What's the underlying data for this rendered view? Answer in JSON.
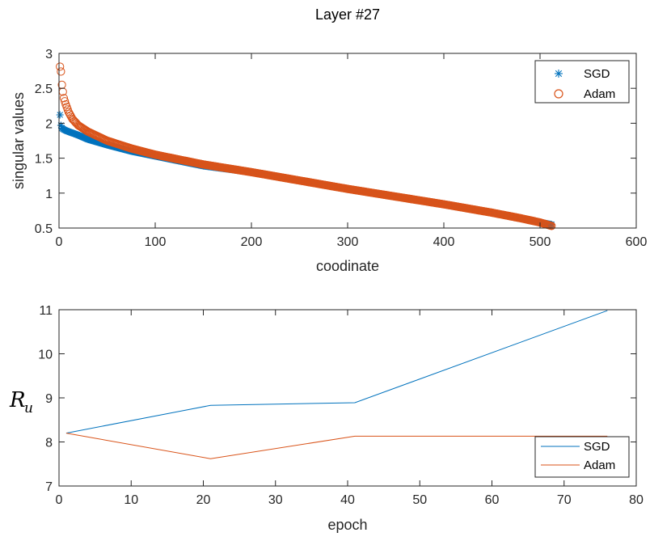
{
  "title": "Layer #27",
  "colors": {
    "sgd": "#0072BD",
    "adam": "#D95319",
    "axis": "#262626"
  },
  "chart_data": [
    {
      "type": "scatter",
      "xlabel": "coodinate",
      "ylabel": "singular values",
      "xlim": [
        0,
        600
      ],
      "ylim": [
        0.5,
        3
      ],
      "xticks": [
        0,
        100,
        200,
        300,
        400,
        500,
        600
      ],
      "yticks": [
        0.5,
        1,
        1.5,
        2,
        2.5,
        3
      ],
      "xtick_labels": [
        "0",
        "100",
        "200",
        "300",
        "400",
        "500",
        "600"
      ],
      "ytick_labels": [
        "0.5",
        "1",
        "1.5",
        "2",
        "2.5",
        "3"
      ],
      "legend_position": "top-right",
      "series": [
        {
          "name": "SGD",
          "marker": "asterisk",
          "n_points": 512,
          "x": [
            1,
            2,
            3,
            5,
            8,
            12,
            20,
            30,
            50,
            75,
            100,
            150,
            200,
            250,
            300,
            350,
            400,
            450,
            480,
            500,
            512
          ],
          "y": [
            2.12,
            1.97,
            1.93,
            1.91,
            1.89,
            1.87,
            1.83,
            1.77,
            1.69,
            1.6,
            1.53,
            1.39,
            1.3,
            1.18,
            1.06,
            0.95,
            0.84,
            0.72,
            0.64,
            0.58,
            0.55
          ]
        },
        {
          "name": "Adam",
          "marker": "circle",
          "n_points": 512,
          "x": [
            1,
            2,
            3,
            4,
            5,
            7,
            10,
            14,
            20,
            30,
            50,
            75,
            100,
            150,
            200,
            250,
            300,
            350,
            400,
            450,
            480,
            500,
            512
          ],
          "y": [
            2.81,
            2.74,
            2.55,
            2.45,
            2.36,
            2.27,
            2.16,
            2.06,
            1.97,
            1.88,
            1.75,
            1.64,
            1.55,
            1.41,
            1.3,
            1.18,
            1.06,
            0.95,
            0.84,
            0.72,
            0.64,
            0.58,
            0.53
          ]
        }
      ]
    },
    {
      "type": "line",
      "xlabel": "epoch",
      "ylabel": "R",
      "ylabel_subscript": "u",
      "xlim": [
        0,
        80
      ],
      "ylim": [
        7,
        11
      ],
      "xticks": [
        0,
        10,
        20,
        30,
        40,
        50,
        60,
        70,
        80
      ],
      "yticks": [
        7,
        8,
        9,
        10,
        11
      ],
      "xtick_labels": [
        "0",
        "10",
        "20",
        "30",
        "40",
        "50",
        "60",
        "70",
        "80"
      ],
      "ytick_labels": [
        "7",
        "8",
        "9",
        "10",
        "11"
      ],
      "legend_position": "bottom-right",
      "series": [
        {
          "name": "SGD",
          "x": [
            1,
            21,
            41,
            76
          ],
          "y": [
            8.2,
            8.83,
            8.89,
            10.98
          ]
        },
        {
          "name": "Adam",
          "x": [
            1,
            21,
            41,
            76
          ],
          "y": [
            8.2,
            7.62,
            8.13,
            8.13
          ]
        }
      ]
    }
  ]
}
